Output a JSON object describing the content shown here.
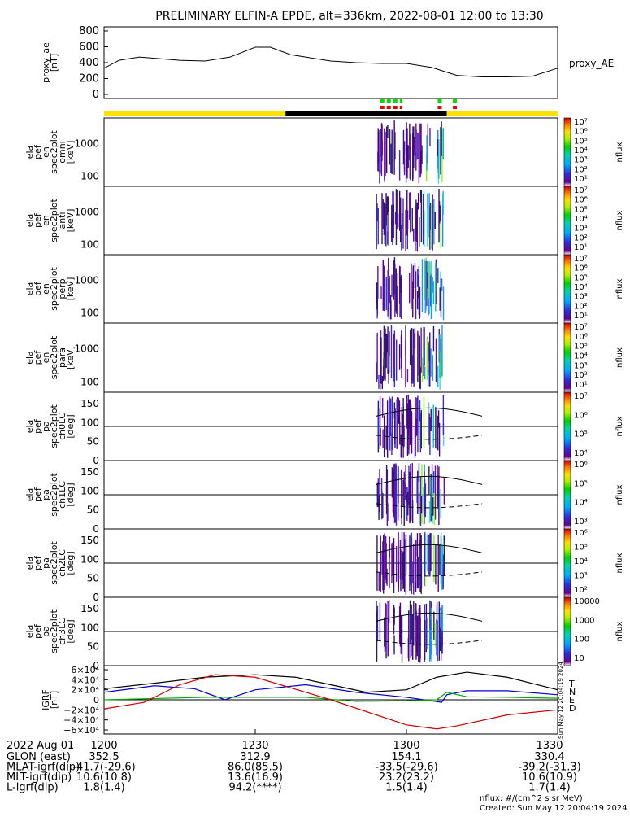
{
  "title": "PRELIMINARY ELFIN-A EPDE, alt=336km, 2022-08-01 12:00 to 13:30",
  "chart_data": {
    "type": "line",
    "title": "PRELIMINARY ELFIN-A EPDE, alt=336km, 2022-08-01 12:00 to 13:30",
    "time_axis": {
      "unit": "HHMM",
      "start_min": 0,
      "end_min": 90,
      "tick_labels": [
        "1200",
        "1230",
        "1300",
        "1330"
      ]
    },
    "panels": [
      {
        "id": "proxy_ae",
        "type": "line",
        "ylabel": [
          "proxy_ae",
          "[nT]"
        ],
        "ylim": [
          0,
          800
        ],
        "yticks": [
          "800",
          "600",
          "400",
          "200",
          "0"
        ],
        "legend": "proxy_AE",
        "x": [
          0,
          3,
          7,
          15,
          20,
          25,
          30,
          33,
          37,
          40,
          45,
          50,
          55,
          60,
          65,
          70,
          75,
          80,
          85,
          90
        ],
        "y": [
          330,
          430,
          470,
          430,
          420,
          470,
          595,
          595,
          500,
          470,
          420,
          400,
          390,
          390,
          340,
          240,
          220,
          220,
          230,
          330
        ]
      },
      {
        "id": "omni",
        "type": "heatmap",
        "ylabel": [
          "ela",
          "pef",
          "en",
          "spec2plot",
          "omni",
          "[keV]"
        ],
        "yticks": [
          "1000",
          "100"
        ],
        "cbar_ticks": [
          "10⁷",
          "10⁶",
          "10⁵",
          "10⁴",
          "10³",
          "10²",
          "10¹"
        ],
        "cbar_label": "nflux"
      },
      {
        "id": "anti",
        "type": "heatmap",
        "ylabel": [
          "ela",
          "pef",
          "en",
          "spec2plot",
          "anti",
          "[keV]"
        ],
        "yticks": [
          "1000",
          "100"
        ],
        "cbar_ticks": [
          "10⁷",
          "10⁶",
          "10⁵",
          "10⁴",
          "10³",
          "10²",
          "10¹"
        ],
        "cbar_label": "nflux"
      },
      {
        "id": "perp",
        "type": "heatmap",
        "ylabel": [
          "ela",
          "pef",
          "en",
          "spec2plot",
          "perp",
          "[keV]"
        ],
        "yticks": [
          "1000",
          "100"
        ],
        "cbar_ticks": [
          "10⁷",
          "10⁶",
          "10⁵",
          "10⁴",
          "10³",
          "10²",
          "10¹"
        ],
        "cbar_label": "nflux"
      },
      {
        "id": "para",
        "type": "heatmap",
        "ylabel": [
          "ela",
          "pef",
          "en",
          "spec2plot",
          "para",
          "[keV]"
        ],
        "yticks": [
          "1000",
          "100"
        ],
        "cbar_ticks": [
          "10⁷",
          "10⁶",
          "10⁵",
          "10⁴",
          "10³",
          "10²",
          "10¹"
        ],
        "cbar_label": "nflux"
      },
      {
        "id": "ch0",
        "type": "heatmap",
        "ylabel": [
          "ela",
          "pef",
          "pa",
          "spec2plot",
          "ch0LC",
          "[deg]"
        ],
        "yticks": [
          "150",
          "100",
          "50",
          "0"
        ],
        "ylim": [
          0,
          180
        ],
        "cbar_ticks": [
          "10⁷",
          "10⁶",
          "10⁵",
          "10⁴"
        ],
        "cbar_label": "nflux"
      },
      {
        "id": "ch1",
        "type": "heatmap",
        "ylabel": [
          "ela",
          "pef",
          "pa",
          "spec2plot",
          "ch1LC",
          "[deg]"
        ],
        "yticks": [
          "150",
          "100",
          "50",
          "0"
        ],
        "ylim": [
          0,
          180
        ],
        "cbar_ticks": [
          "10⁶",
          "10⁵",
          "10⁴",
          "10³"
        ],
        "cbar_label": "nflux"
      },
      {
        "id": "ch2",
        "type": "heatmap",
        "ylabel": [
          "ela",
          "pef",
          "pa",
          "spec2plot",
          "ch2LC",
          "[deg]"
        ],
        "yticks": [
          "150",
          "100",
          "50",
          "0"
        ],
        "ylim": [
          0,
          180
        ],
        "cbar_ticks": [
          "10⁶",
          "10⁵",
          "10⁴",
          "10³",
          "10²"
        ],
        "cbar_label": "nflux"
      },
      {
        "id": "ch3",
        "type": "heatmap",
        "ylabel": [
          "ela",
          "pef",
          "pa",
          "spec2plot",
          "ch3LC",
          "[deg]"
        ],
        "yticks": [
          "150",
          "100",
          "50",
          "0"
        ],
        "ylim": [
          0,
          180
        ],
        "cbar_ticks": [
          "10000",
          "1000",
          "100",
          "10"
        ],
        "cbar_label": "nflux"
      },
      {
        "id": "igrf",
        "type": "line",
        "ylabel": [
          "IGRF",
          "[nT]"
        ],
        "ylim": [
          -60000,
          60000
        ],
        "yticks": [
          "6×10⁴",
          "4×10⁴",
          "2×10⁴",
          "0",
          "−2×10⁴",
          "−4×10⁴",
          "−6×10⁴"
        ],
        "legend": [
          "T",
          "N",
          "E",
          "D"
        ],
        "series": [
          {
            "name": "T",
            "color": "#000000",
            "x": [
              0,
              10,
              20,
              30,
              38,
              45,
              52,
              60,
              66,
              72,
              80,
              90
            ],
            "y": [
              22000,
              33000,
              45000,
              50000,
              45000,
              30000,
              15000,
              20000,
              45000,
              55000,
              45000,
              20000
            ]
          },
          {
            "name": "N",
            "color": "#0000cc",
            "x": [
              0,
              10,
              18,
              24,
              30,
              40,
              50,
              60,
              67,
              68,
              72,
              80,
              90
            ],
            "y": [
              15000,
              28000,
              22000,
              0,
              20000,
              30000,
              15000,
              5000,
              -5000,
              10000,
              18000,
              18000,
              10000
            ]
          },
          {
            "name": "E",
            "color": "#00aa00",
            "x": [
              0,
              20,
              40,
              50,
              60,
              66,
              68,
              72,
              80,
              90
            ],
            "y": [
              0,
              5000,
              5000,
              -3000,
              -2000,
              0,
              15000,
              6000,
              5000,
              3000
            ]
          },
          {
            "name": "D",
            "color": "#cc0000",
            "x": [
              0,
              8,
              15,
              22,
              30,
              45,
              60,
              66,
              70,
              80,
              90
            ],
            "y": [
              -18000,
              -5000,
              30000,
              50000,
              45000,
              0,
              -50000,
              -58000,
              -52000,
              -30000,
              -20000
            ]
          }
        ]
      }
    ],
    "bands": {
      "zero_lines_at_deg": 90,
      "hemisphere_bar": [
        {
          "from_min": 0,
          "to_min": 36,
          "color": "#ffe100"
        },
        {
          "from_min": 36,
          "to_min": 68,
          "color": "#000000"
        },
        {
          "from_min": 68,
          "to_min": 90,
          "color": "#ffe100"
        }
      ]
    }
  },
  "ephemeris": {
    "header": "2022 Aug 01",
    "times": [
      "1200",
      "1230",
      "1300",
      "1330"
    ],
    "rows": [
      {
        "label": "GLON (east)",
        "values": [
          "352.5",
          "312.9",
          "154.1",
          "330.4"
        ]
      },
      {
        "label": "MLAT-igrf(dip)",
        "values": [
          "-41.7(-29.6)",
          "86.0(85.5)",
          "-33.5(-29.6)",
          "-39.2(-31.3)"
        ]
      },
      {
        "label": "MLT-igrf(dip)",
        "values": [
          "10.6(10.8)",
          "13.6(16.9)",
          "23.2(23.2)",
          "10.6(10.9)"
        ]
      },
      {
        "label": "L-igrf(dip)",
        "values": [
          "1.8(1.4)",
          "94.2(****)",
          "1.5(1.4)",
          "1.7(1.4)"
        ]
      }
    ]
  },
  "footer": {
    "units": "nflux: #/(cm^2 s sr MeV)",
    "created": "Created: Sun May 12 20:04:19 2024",
    "side_stamp": "Sun May 12 20:04:19 2024"
  }
}
